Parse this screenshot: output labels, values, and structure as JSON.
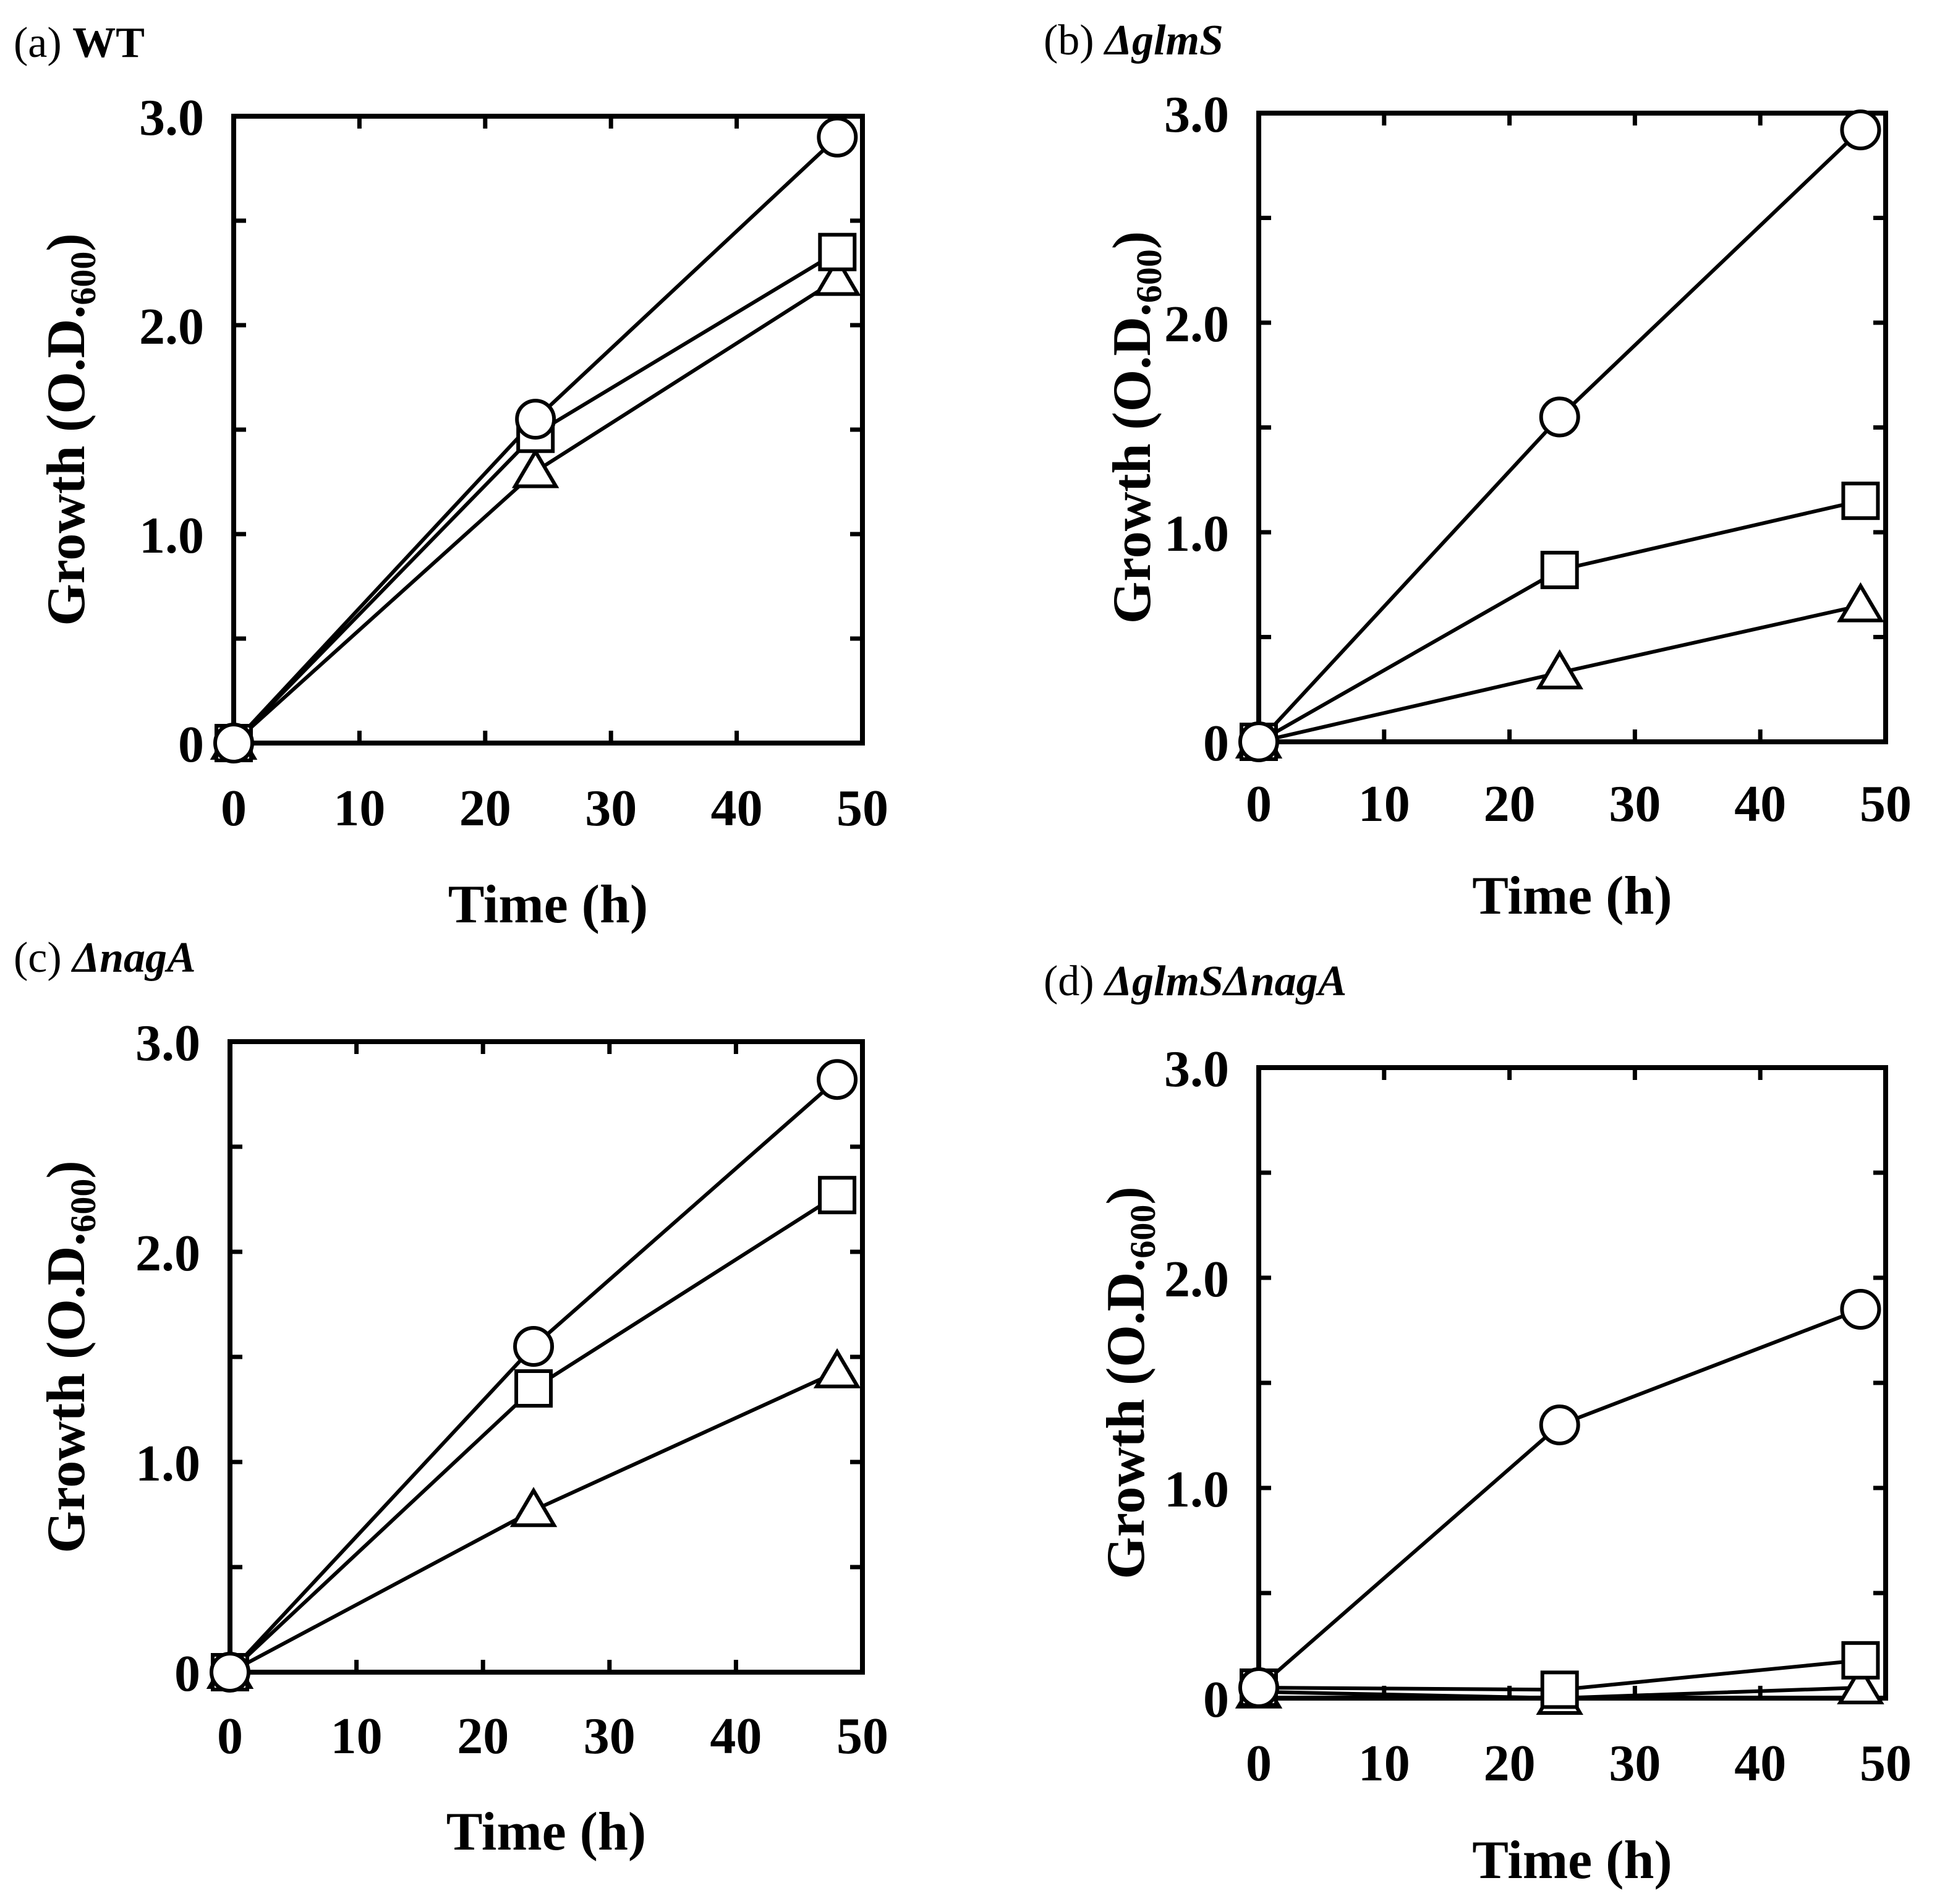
{
  "figure": {
    "description_label": ""
  },
  "chart_data": [
    {
      "id": "a",
      "type": "line",
      "label_prefix": "(a)",
      "label_name": "WT",
      "label_style": "bold",
      "xlabel": "Time (h)",
      "ylabel_main": "Growth (O.D.",
      "ylabel_sub": "600",
      "ylabel_close": ")",
      "xlim": [
        0,
        50
      ],
      "ylim": [
        0,
        3.0
      ],
      "xticks": [
        0,
        10,
        20,
        30,
        40,
        50
      ],
      "xtick_labels": [
        "0",
        "10",
        "20",
        "30",
        "40",
        "50"
      ],
      "yticks": [
        0,
        1.0,
        2.0,
        3.0
      ],
      "ytick_labels": [
        "0",
        "1.0",
        "2.0",
        "3.0"
      ],
      "yticks_minor": [
        0.5,
        1.5,
        2.5
      ],
      "xticks_minor": [],
      "series": [
        {
          "name": "circle",
          "marker": "circle",
          "x": [
            0,
            24,
            48
          ],
          "y": [
            0.0,
            1.55,
            2.9
          ]
        },
        {
          "name": "square",
          "marker": "square",
          "x": [
            0,
            24,
            48
          ],
          "y": [
            0.0,
            1.48,
            2.35
          ]
        },
        {
          "name": "triangle",
          "marker": "triangle",
          "x": [
            0,
            24,
            48
          ],
          "y": [
            0.0,
            1.3,
            2.22
          ]
        }
      ]
    },
    {
      "id": "b",
      "type": "line",
      "label_prefix": "(b)",
      "label_name": "ΔglmS",
      "label_style": "bold-italic",
      "xlabel": "Time (h)",
      "ylabel_main": "Growth (O.D.",
      "ylabel_sub": "600",
      "ylabel_close": ")",
      "xlim": [
        0,
        50
      ],
      "ylim": [
        0,
        3.0
      ],
      "xticks": [
        0,
        10,
        20,
        30,
        40,
        50
      ],
      "xtick_labels": [
        "0",
        "10",
        "20",
        "30",
        "40",
        "50"
      ],
      "yticks": [
        0,
        1.0,
        2.0,
        3.0
      ],
      "ytick_labels": [
        "0",
        "1.0",
        "2.0",
        "3.0"
      ],
      "yticks_minor": [
        0.5,
        1.5,
        2.5
      ],
      "xticks_minor": [],
      "series": [
        {
          "name": "circle",
          "marker": "circle",
          "x": [
            0,
            24,
            48
          ],
          "y": [
            0.0,
            1.55,
            2.92
          ]
        },
        {
          "name": "square",
          "marker": "square",
          "x": [
            0,
            24,
            48
          ],
          "y": [
            0.0,
            0.82,
            1.15
          ]
        },
        {
          "name": "triangle",
          "marker": "triangle",
          "x": [
            0,
            24,
            48
          ],
          "y": [
            0.0,
            0.33,
            0.65
          ]
        }
      ]
    },
    {
      "id": "c",
      "type": "line",
      "label_prefix": "(c)",
      "label_name": "ΔnagA",
      "label_style": "bold-italic",
      "xlabel": "Time (h)",
      "ylabel_main": "Growth (O.D.",
      "ylabel_sub": "600",
      "ylabel_close": ")",
      "xlim": [
        0,
        50
      ],
      "ylim": [
        0,
        3.0
      ],
      "xticks": [
        0,
        10,
        20,
        30,
        40,
        50
      ],
      "xtick_labels": [
        "0",
        "10",
        "20",
        "30",
        "40",
        "50"
      ],
      "yticks": [
        0,
        1.0,
        2.0,
        3.0
      ],
      "ytick_labels": [
        "0",
        "1.0",
        "2.0",
        "3.0"
      ],
      "yticks_minor": [
        0.5,
        1.5,
        2.5
      ],
      "xticks_minor": [],
      "series": [
        {
          "name": "circle",
          "marker": "circle",
          "x": [
            0,
            24,
            48
          ],
          "y": [
            0.0,
            1.55,
            2.82
          ]
        },
        {
          "name": "square",
          "marker": "square",
          "x": [
            0,
            24,
            48
          ],
          "y": [
            0.0,
            1.35,
            2.27
          ]
        },
        {
          "name": "triangle",
          "marker": "triangle",
          "x": [
            0,
            24,
            48
          ],
          "y": [
            0.0,
            0.77,
            1.43
          ]
        }
      ]
    },
    {
      "id": "d",
      "type": "line",
      "label_prefix": "(d)",
      "label_name": "ΔglmSΔnagA",
      "label_style": "bold-italic",
      "xlabel": "Time (h)",
      "ylabel_main": "Growth (O.D.",
      "ylabel_sub": "600",
      "ylabel_close": ")",
      "xlim": [
        0,
        50
      ],
      "ylim": [
        0,
        3.0
      ],
      "xticks": [
        0,
        10,
        20,
        30,
        40,
        50
      ],
      "xtick_labels": [
        "0",
        "10",
        "20",
        "30",
        "40",
        "50"
      ],
      "yticks": [
        0,
        1.0,
        2.0,
        3.0
      ],
      "ytick_labels": [
        "0",
        "1.0",
        "2.0",
        "3.0"
      ],
      "yticks_minor": [
        0.5,
        1.5,
        2.5
      ],
      "xticks_minor": [],
      "series": [
        {
          "name": "circle",
          "marker": "circle",
          "x": [
            0,
            24,
            48
          ],
          "y": [
            0.05,
            1.3,
            1.85
          ]
        },
        {
          "name": "square",
          "marker": "square",
          "x": [
            0,
            24,
            48
          ],
          "y": [
            0.05,
            0.04,
            0.18
          ]
        },
        {
          "name": "triangle",
          "marker": "triangle",
          "x": [
            0,
            24,
            48
          ],
          "y": [
            0.03,
            0.0,
            0.05
          ]
        }
      ]
    }
  ]
}
